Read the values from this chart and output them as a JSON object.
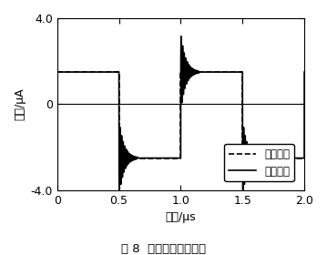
{
  "xlim": [
    0,
    2.0
  ],
  "ylim": [
    -4.0,
    4.0
  ],
  "xticks": [
    0,
    0.5,
    1.0,
    1.5,
    2.0
  ],
  "yticks": [
    -4.0,
    0,
    4.0
  ],
  "xlabel": "时间/μs",
  "ylabel": "电流/μA",
  "legend_labels": [
    "输入信号",
    "输出信号"
  ],
  "caption": "图 8  方波响应测试结果",
  "input_amplitude_high": 1.5,
  "input_amplitude_low": -2.5,
  "output_amplitude_high": 1.5,
  "output_amplitude_low": -2.5,
  "line_color": "black",
  "background_color": "white"
}
